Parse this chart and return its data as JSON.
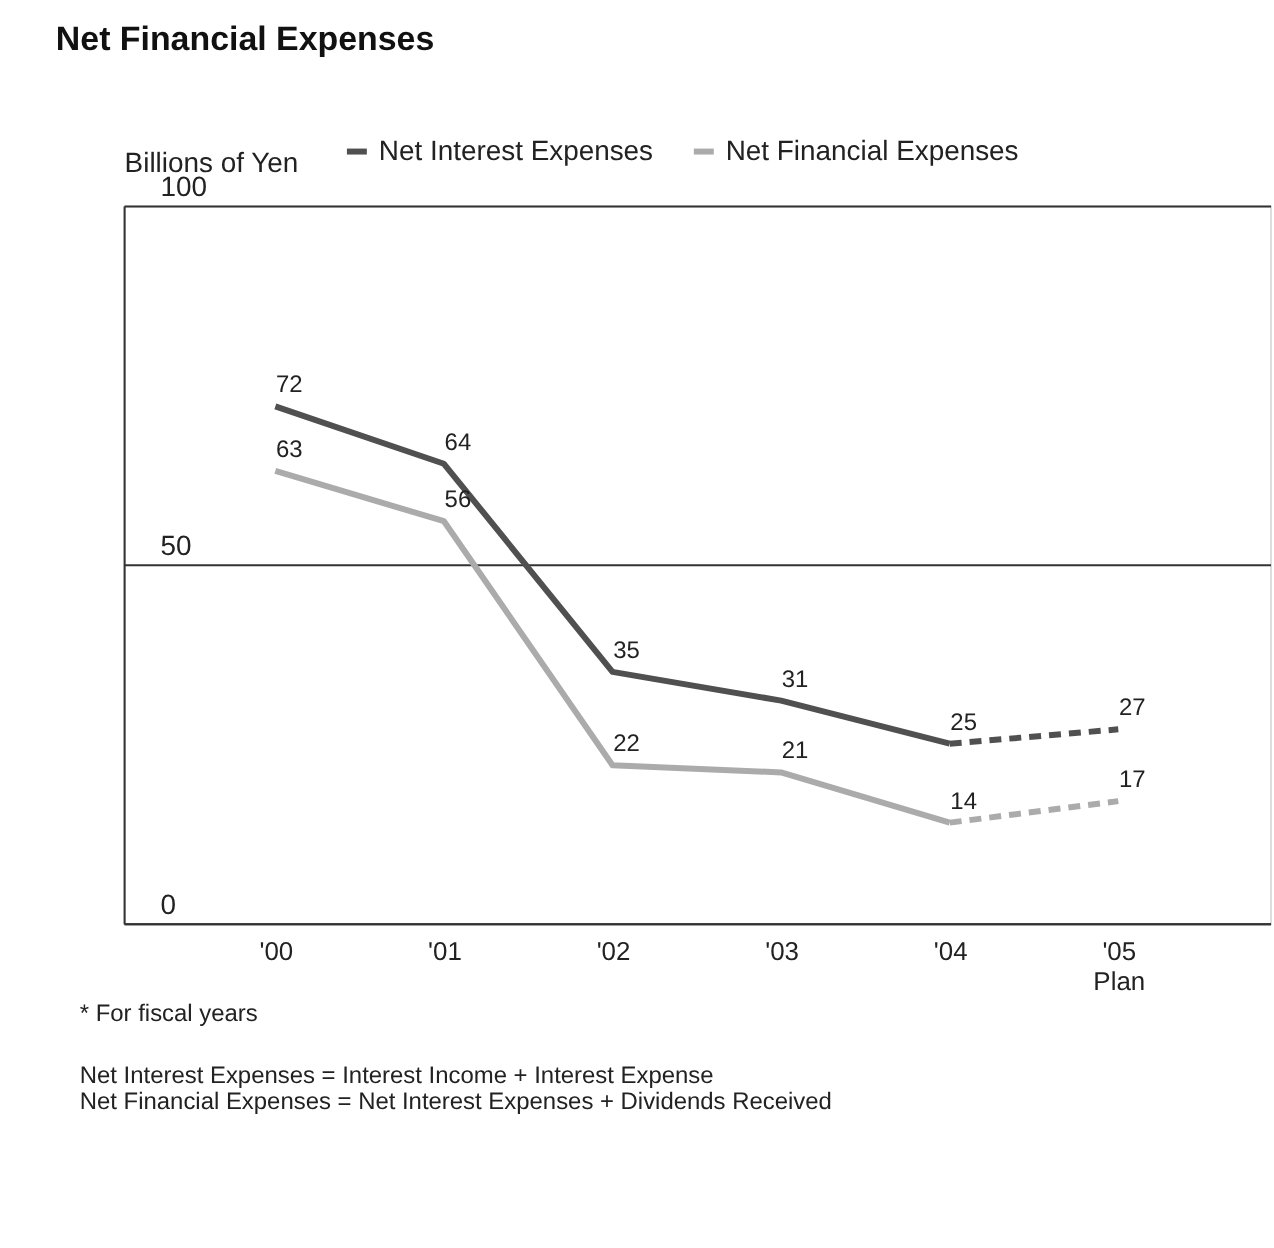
{
  "chart_data": {
    "type": "line",
    "title": "Net Financial Expenses",
    "ylabel": "Billions of Yen",
    "categories": [
      "'00",
      "'01",
      "'02",
      "'03",
      "'04",
      "'05 Plan"
    ],
    "series": [
      {
        "name": "Net Interest Expenses",
        "color": "#505050",
        "values": [
          72,
          64,
          35,
          31,
          25,
          null
        ],
        "value_labels": [
          "72",
          "64",
          "35",
          "31",
          "25",
          null
        ],
        "line_style": "solid"
      },
      {
        "name": "Net Financial Expenses",
        "color": "#ababab",
        "values": [
          63,
          56,
          22,
          21,
          14,
          null
        ],
        "value_labels": [
          "63",
          "56",
          "22",
          "21",
          "14",
          null
        ],
        "line_style": "solid"
      },
      {
        "color": "#505050",
        "values": [
          null,
          null,
          null,
          null,
          25,
          27
        ],
        "value_labels": [
          null,
          null,
          null,
          null,
          null,
          "27"
        ],
        "line_style": "dashed"
      },
      {
        "color": "#ababab",
        "values": [
          null,
          null,
          null,
          null,
          14,
          17
        ],
        "value_labels": [
          null,
          null,
          null,
          null,
          null,
          "17"
        ],
        "line_style": "dashed"
      }
    ],
    "ylim": [
      0,
      100
    ],
    "yticks": [
      0,
      50,
      100
    ],
    "grid": "y",
    "legend": "top",
    "marker": "none",
    "annotations": [
      "* For fiscal years",
      "Net Interest Expenses = Interest Income + Interest Expense",
      "Net Financial Expenses = Net Interest Expenses + Dividends Received"
    ]
  }
}
